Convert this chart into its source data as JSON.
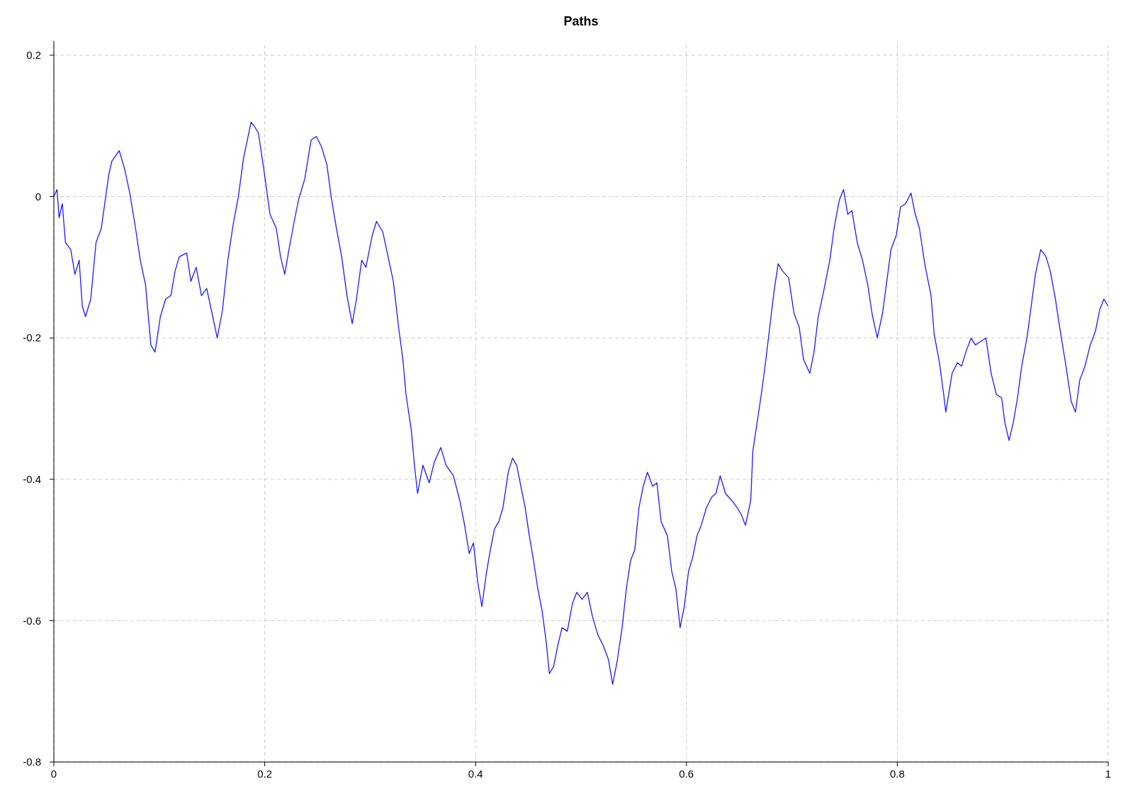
{
  "chart_data": {
    "type": "line",
    "title": "Paths",
    "xlim": [
      0,
      1
    ],
    "ylim": [
      -0.8,
      0.22
    ],
    "xticks": [
      0,
      0.2,
      0.4,
      0.6,
      0.8,
      1
    ],
    "yticks": [
      -0.8,
      -0.6,
      -0.4,
      -0.2,
      0,
      0.2
    ],
    "grid": true,
    "marker": "none",
    "line_style": "solid",
    "series": [
      {
        "color": "#1a1aff",
        "x": [
          0,
          0.003,
          0.005,
          0.008,
          0.011,
          0.016,
          0.02,
          0.024,
          0.027,
          0.03,
          0.035,
          0.04,
          0.045,
          0.052,
          0.055,
          0.062,
          0.067,
          0.072,
          0.077,
          0.082,
          0.087,
          0.092,
          0.096,
          0.101,
          0.106,
          0.111,
          0.115,
          0.119,
          0.126,
          0.13,
          0.135,
          0.14,
          0.145,
          0.15,
          0.155,
          0.16,
          0.165,
          0.17,
          0.175,
          0.18,
          0.187,
          0.19,
          0.194,
          0.199,
          0.205,
          0.211,
          0.215,
          0.219,
          0.223,
          0.228,
          0.232,
          0.238,
          0.244,
          0.249,
          0.254,
          0.259,
          0.263,
          0.268,
          0.273,
          0.278,
          0.283,
          0.287,
          0.292,
          0.296,
          0.302,
          0.306,
          0.312,
          0.317,
          0.322,
          0.327,
          0.331,
          0.334,
          0.339,
          0.342,
          0.345,
          0.35,
          0.356,
          0.361,
          0.367,
          0.372,
          0.379,
          0.385,
          0.389,
          0.394,
          0.398,
          0.402,
          0.406,
          0.41,
          0.414,
          0.418,
          0.422,
          0.426,
          0.431,
          0.435,
          0.439,
          0.443,
          0.447,
          0.451,
          0.455,
          0.459,
          0.463,
          0.467,
          0.47,
          0.474,
          0.478,
          0.482,
          0.487,
          0.492,
          0.496,
          0.501,
          0.506,
          0.511,
          0.516,
          0.521,
          0.526,
          0.53,
          0.534,
          0.539,
          0.543,
          0.547,
          0.551,
          0.555,
          0.559,
          0.563,
          0.568,
          0.572,
          0.576,
          0.582,
          0.586,
          0.59,
          0.594,
          0.598,
          0.602,
          0.606,
          0.61,
          0.614,
          0.619,
          0.624,
          0.628,
          0.632,
          0.637,
          0.643,
          0.648,
          0.652,
          0.656,
          0.661,
          0.663,
          0.666,
          0.671,
          0.675,
          0.679,
          0.683,
          0.687,
          0.691,
          0.697,
          0.702,
          0.707,
          0.711,
          0.717,
          0.721,
          0.725,
          0.73,
          0.736,
          0.74,
          0.745,
          0.749,
          0.753,
          0.757,
          0.762,
          0.767,
          0.772,
          0.776,
          0.781,
          0.786,
          0.79,
          0.794,
          0.799,
          0.803,
          0.808,
          0.813,
          0.817,
          0.821,
          0.826,
          0.832,
          0.835,
          0.84,
          0.844,
          0.846,
          0.852,
          0.857,
          0.861,
          0.865,
          0.87,
          0.874,
          0.879,
          0.884,
          0.889,
          0.894,
          0.899,
          0.902,
          0.906,
          0.91,
          0.914,
          0.918,
          0.923,
          0.927,
          0.931,
          0.936,
          0.941,
          0.945,
          0.95,
          0.954,
          0.96,
          0.965,
          0.969,
          0.973,
          0.978,
          0.983,
          0.988,
          0.992,
          0.996,
          1.0
        ],
        "values": [
          0,
          0.01,
          -0.03,
          -0.01,
          -0.065,
          -0.075,
          -0.11,
          -0.09,
          -0.155,
          -0.17,
          -0.145,
          -0.065,
          -0.045,
          0.03,
          0.05,
          0.065,
          0.04,
          0.005,
          -0.04,
          -0.09,
          -0.125,
          -0.21,
          -0.22,
          -0.17,
          -0.145,
          -0.14,
          -0.105,
          -0.085,
          -0.08,
          -0.12,
          -0.1,
          -0.14,
          -0.13,
          -0.165,
          -0.2,
          -0.16,
          -0.09,
          -0.04,
          0,
          0.055,
          0.105,
          0.1,
          0.09,
          0.04,
          -0.025,
          -0.045,
          -0.085,
          -0.11,
          -0.075,
          -0.035,
          -0.005,
          0.025,
          0.08,
          0.085,
          0.07,
          0.045,
          0,
          -0.045,
          -0.085,
          -0.14,
          -0.18,
          -0.145,
          -0.09,
          -0.1,
          -0.055,
          -0.035,
          -0.05,
          -0.085,
          -0.12,
          -0.185,
          -0.23,
          -0.28,
          -0.33,
          -0.38,
          -0.42,
          -0.38,
          -0.405,
          -0.375,
          -0.355,
          -0.38,
          -0.395,
          -0.43,
          -0.46,
          -0.505,
          -0.49,
          -0.545,
          -0.58,
          -0.535,
          -0.5,
          -0.47,
          -0.46,
          -0.44,
          -0.39,
          -0.37,
          -0.38,
          -0.41,
          -0.44,
          -0.48,
          -0.515,
          -0.555,
          -0.585,
          -0.63,
          -0.675,
          -0.665,
          -0.635,
          -0.61,
          -0.615,
          -0.575,
          -0.56,
          -0.57,
          -0.56,
          -0.595,
          -0.62,
          -0.635,
          -0.655,
          -0.69,
          -0.66,
          -0.61,
          -0.555,
          -0.515,
          -0.5,
          -0.44,
          -0.41,
          -0.39,
          -0.41,
          -0.405,
          -0.46,
          -0.48,
          -0.53,
          -0.555,
          -0.61,
          -0.58,
          -0.53,
          -0.51,
          -0.48,
          -0.465,
          -0.44,
          -0.425,
          -0.42,
          -0.395,
          -0.42,
          -0.43,
          -0.44,
          -0.45,
          -0.465,
          -0.43,
          -0.36,
          -0.33,
          -0.28,
          -0.235,
          -0.185,
          -0.135,
          -0.095,
          -0.105,
          -0.115,
          -0.165,
          -0.185,
          -0.23,
          -0.25,
          -0.22,
          -0.17,
          -0.135,
          -0.09,
          -0.045,
          -0.005,
          0.01,
          -0.025,
          -0.02,
          -0.065,
          -0.09,
          -0.125,
          -0.165,
          -0.2,
          -0.165,
          -0.12,
          -0.075,
          -0.055,
          -0.015,
          -0.01,
          0.005,
          -0.025,
          -0.045,
          -0.095,
          -0.14,
          -0.195,
          -0.235,
          -0.28,
          -0.305,
          -0.25,
          -0.235,
          -0.24,
          -0.22,
          -0.2,
          -0.21,
          -0.205,
          -0.2,
          -0.25,
          -0.28,
          -0.285,
          -0.32,
          -0.345,
          -0.32,
          -0.285,
          -0.24,
          -0.2,
          -0.155,
          -0.11,
          -0.075,
          -0.085,
          -0.105,
          -0.145,
          -0.185,
          -0.24,
          -0.29,
          -0.305,
          -0.26,
          -0.24,
          -0.21,
          -0.19,
          -0.16,
          -0.145,
          -0.155
        ]
      }
    ]
  }
}
